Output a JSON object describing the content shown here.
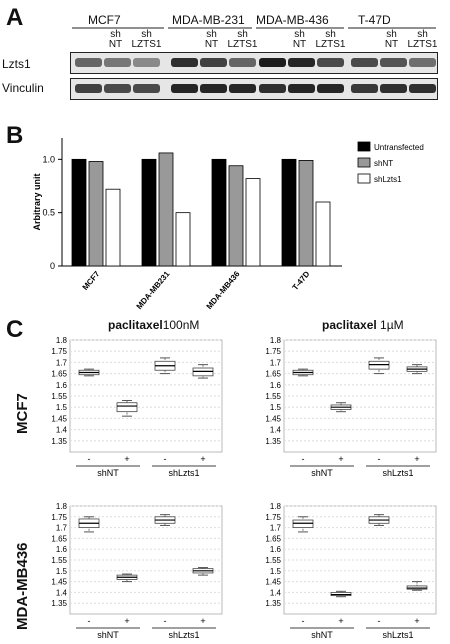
{
  "panel_a": {
    "letter": "A",
    "cell_lines": [
      "MCF7",
      "MDA-MB-231",
      "MDA-MB-436",
      "T-47D"
    ],
    "lane_labels": [
      [
        "",
        "sh\nNT",
        "sh\nLZTS1"
      ],
      [
        "",
        "sh\nNT",
        "sh\nLZTS1"
      ],
      [
        "",
        "sh\nNT",
        "sh\nLZTS1"
      ],
      [
        "",
        "sh\nNT",
        "sh\nLZTS1"
      ]
    ],
    "rows": [
      "Lzts1",
      "Vinculin"
    ]
  },
  "panel_b": {
    "letter": "B",
    "chart_data": {
      "type": "bar",
      "categories": [
        "MCF7",
        "MDA-MB231",
        "MDA-MB436",
        "T-47D"
      ],
      "series": [
        {
          "name": "Untransfected",
          "values": [
            1.0,
            1.0,
            1.0,
            1.0
          ],
          "color": "#000000"
        },
        {
          "name": "shNT",
          "values": [
            0.98,
            1.06,
            0.94,
            0.99
          ],
          "color": "#999999"
        },
        {
          "name": "shLzts1",
          "values": [
            0.72,
            0.5,
            0.82,
            0.6
          ],
          "color": "#ffffff"
        }
      ],
      "ylabel": "Arbitrary unit",
      "ylim": [
        0,
        1.2
      ],
      "yticks": [
        "0",
        "0.5",
        "1.0"
      ],
      "legend": "top-right"
    }
  },
  "panel_c": {
    "letter": "C",
    "row_labels": [
      "MCF7",
      "MDA-MB436"
    ],
    "titles": [
      {
        "bold": "paclitaxel",
        "rest": "100nM"
      },
      {
        "bold": "paclitaxel",
        "rest": " 1µM"
      }
    ],
    "x_signs": [
      "-",
      "+",
      "-",
      "+"
    ],
    "x_groups": [
      "shNT",
      "shLzts1"
    ],
    "yticks": [
      "1.35",
      "1.4",
      "1.45",
      "1.5",
      "1.55",
      "1.6",
      "1.65",
      "1.7",
      "1.75",
      "1.8"
    ],
    "chart_data": [
      {
        "type": "box",
        "row": "MCF7",
        "condition": "paclitaxel 100nM",
        "ylim": [
          1.3,
          1.8
        ],
        "boxes": [
          {
            "group": "shNT",
            "treatment": "-",
            "min": 1.64,
            "q1": 1.645,
            "median": 1.655,
            "q3": 1.665,
            "max": 1.67
          },
          {
            "group": "shNT",
            "treatment": "+",
            "min": 1.46,
            "q1": 1.48,
            "median": 1.505,
            "q3": 1.52,
            "max": 1.53
          },
          {
            "group": "shLzts1",
            "treatment": "-",
            "min": 1.65,
            "q1": 1.665,
            "median": 1.685,
            "q3": 1.705,
            "max": 1.72
          },
          {
            "group": "shLzts1",
            "treatment": "+",
            "min": 1.63,
            "q1": 1.64,
            "median": 1.66,
            "q3": 1.675,
            "max": 1.69
          }
        ]
      },
      {
        "type": "box",
        "row": "MCF7",
        "condition": "paclitaxel 1µM",
        "ylim": [
          1.3,
          1.8
        ],
        "boxes": [
          {
            "group": "shNT",
            "treatment": "-",
            "min": 1.64,
            "q1": 1.645,
            "median": 1.655,
            "q3": 1.665,
            "max": 1.67
          },
          {
            "group": "shNT",
            "treatment": "+",
            "min": 1.48,
            "q1": 1.49,
            "median": 1.5,
            "q3": 1.51,
            "max": 1.52
          },
          {
            "group": "shLzts1",
            "treatment": "-",
            "min": 1.65,
            "q1": 1.67,
            "median": 1.69,
            "q3": 1.705,
            "max": 1.72
          },
          {
            "group": "shLzts1",
            "treatment": "+",
            "min": 1.65,
            "q1": 1.66,
            "median": 1.67,
            "q3": 1.68,
            "max": 1.69
          }
        ]
      },
      {
        "type": "box",
        "row": "MDA-MB436",
        "condition": "paclitaxel 100nM",
        "ylim": [
          1.3,
          1.8
        ],
        "boxes": [
          {
            "group": "shNT",
            "treatment": "-",
            "min": 1.68,
            "q1": 1.7,
            "median": 1.72,
            "q3": 1.74,
            "max": 1.75
          },
          {
            "group": "shNT",
            "treatment": "+",
            "min": 1.45,
            "q1": 1.46,
            "median": 1.47,
            "q3": 1.48,
            "max": 1.485
          },
          {
            "group": "shLzts1",
            "treatment": "-",
            "min": 1.71,
            "q1": 1.72,
            "median": 1.735,
            "q3": 1.75,
            "max": 1.76
          },
          {
            "group": "shLzts1",
            "treatment": "+",
            "min": 1.48,
            "q1": 1.49,
            "median": 1.5,
            "q3": 1.51,
            "max": 1.515
          }
        ]
      },
      {
        "type": "box",
        "row": "MDA-MB436",
        "condition": "paclitaxel 1µM",
        "ylim": [
          1.3,
          1.8
        ],
        "boxes": [
          {
            "group": "shNT",
            "treatment": "-",
            "min": 1.68,
            "q1": 1.7,
            "median": 1.72,
            "q3": 1.735,
            "max": 1.75
          },
          {
            "group": "shNT",
            "treatment": "+",
            "min": 1.38,
            "q1": 1.385,
            "median": 1.39,
            "q3": 1.4,
            "max": 1.405
          },
          {
            "group": "shLzts1",
            "treatment": "-",
            "min": 1.71,
            "q1": 1.72,
            "median": 1.735,
            "q3": 1.75,
            "max": 1.76
          },
          {
            "group": "shLzts1",
            "treatment": "+",
            "min": 1.41,
            "q1": 1.415,
            "median": 1.42,
            "q3": 1.43,
            "max": 1.45
          }
        ]
      }
    ]
  }
}
